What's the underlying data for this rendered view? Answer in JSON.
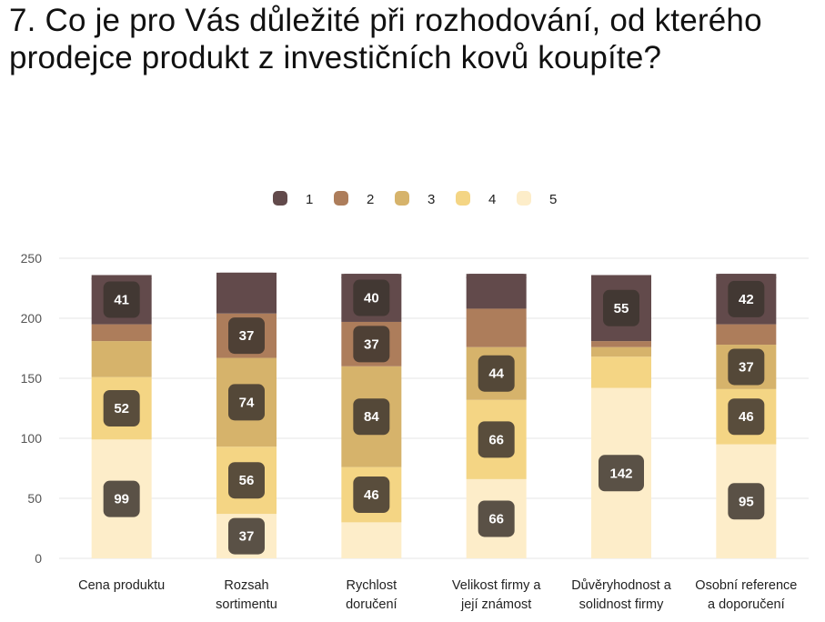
{
  "title": "7. Co je pro Vás důležité při rozhodování, od kterého prodejce produkt z investičních kovů koupíte?",
  "chart_data": {
    "type": "bar",
    "stacked": true,
    "categories": [
      [
        "Cena produktu"
      ],
      [
        "Rozsah",
        "sortimentu"
      ],
      [
        "Rychlost",
        "doručení"
      ],
      [
        "Velikost firmy a",
        "její známost"
      ],
      [
        "Důvěryhodnost a",
        "solidnost firmy"
      ],
      [
        "Osobní reference",
        "a doporučení"
      ]
    ],
    "series": [
      {
        "name": "5",
        "color": "#fdedc9",
        "values": [
          99,
          37,
          30,
          66,
          142,
          95
        ]
      },
      {
        "name": "4",
        "color": "#f4d584",
        "values": [
          52,
          56,
          46,
          66,
          26,
          46
        ]
      },
      {
        "name": "3",
        "color": "#d6b36b",
        "values": [
          30,
          74,
          84,
          44,
          8,
          37
        ]
      },
      {
        "name": "2",
        "color": "#ad7d5b",
        "values": [
          14,
          37,
          37,
          32,
          5,
          17
        ]
      },
      {
        "name": "1",
        "color": "#624a4b",
        "values": [
          41,
          34,
          40,
          29,
          55,
          42
        ]
      }
    ],
    "data_labels": [
      {
        "series": "5",
        "values": [
          99,
          37,
          null,
          66,
          142,
          95
        ]
      },
      {
        "series": "4",
        "values": [
          52,
          56,
          46,
          66,
          null,
          46
        ]
      },
      {
        "series": "3",
        "values": [
          null,
          74,
          84,
          44,
          null,
          37
        ]
      },
      {
        "series": "2",
        "values": [
          null,
          37,
          37,
          null,
          null,
          null
        ]
      },
      {
        "series": "1",
        "values": [
          41,
          null,
          40,
          null,
          55,
          42
        ]
      }
    ],
    "legend": [
      "1",
      "2",
      "3",
      "4",
      "5"
    ],
    "legend_position": "top",
    "yticks": [
      0,
      50,
      100,
      150,
      200,
      250
    ],
    "ylim": [
      0,
      250
    ],
    "grid": true,
    "xlabel": "",
    "ylabel": ""
  }
}
